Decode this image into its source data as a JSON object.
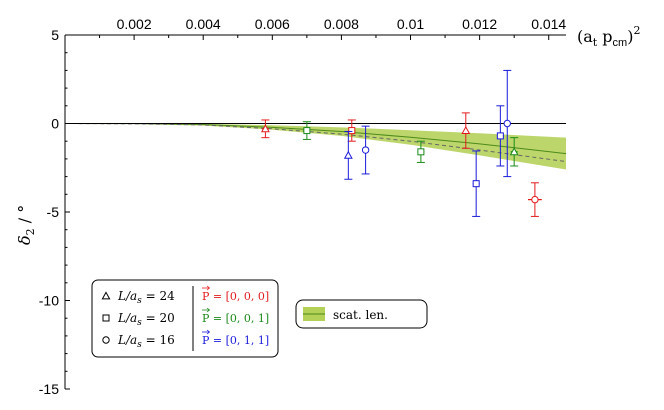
{
  "chart_data": {
    "type": "scatter",
    "x_axis": {
      "label_main": "(a",
      "label_sub": "t",
      "label_mid": " p",
      "label_sub2": "cm",
      "label_end": ")",
      "label_sup": "2",
      "range": [
        0,
        0.0145
      ],
      "ticks": [
        0.002,
        0.004,
        0.006,
        0.008,
        0.01,
        0.012,
        0.014
      ],
      "tick_labels": [
        "0.002",
        "0.004",
        "0.006",
        "0.008",
        "0.01",
        "0.012",
        "0.014"
      ],
      "position": "top"
    },
    "y_axis": {
      "label_main": "δ",
      "label_sub": "2",
      "label_end": " / °",
      "range": [
        -15,
        5
      ],
      "ticks": [
        5,
        0,
        -5,
        -10,
        -15
      ],
      "tick_labels": [
        "5",
        "0",
        "-5",
        "-10",
        "-15"
      ]
    },
    "colors": {
      "frame_000": "#e31a1c",
      "frame_001": "#1a8a1a",
      "frame_011": "#1a1adb",
      "band_fill": "#a6c83a",
      "band_line": "#4d8a1a"
    },
    "series": [
      {
        "name": "P = [0,0,0]",
        "color_key": "frame_000",
        "points": [
          {
            "x": 0.0058,
            "y": -0.3,
            "err": 0.5,
            "xerr": 0.0001,
            "volume": "L/a_s = 24"
          },
          {
            "x": 0.0083,
            "y": -0.4,
            "err": 0.6,
            "xerr": 0.0001,
            "volume": "L/a_s = 20"
          },
          {
            "x": 0.0116,
            "y": -0.4,
            "err": 1.0,
            "xerr": 5e-05,
            "volume": "L/a_s = 24"
          },
          {
            "x": 0.0136,
            "y": -4.3,
            "err": 0.95,
            "xerr": 0.0002,
            "volume": "L/a_s = 16"
          }
        ]
      },
      {
        "name": "P = [0,0,1]",
        "color_key": "frame_001",
        "points": [
          {
            "x": 0.007,
            "y": -0.4,
            "err": 0.5,
            "xerr": 0.0001,
            "volume": "L/a_s = 20"
          },
          {
            "x": 0.0103,
            "y": -1.6,
            "err": 0.6,
            "xerr": 0.0001,
            "volume": "L/a_s = 20"
          },
          {
            "x": 0.013,
            "y": -1.6,
            "err": 0.8,
            "xerr": 0.0001,
            "volume": "L/a_s = 24"
          }
        ]
      },
      {
        "name": "P = [0,1,1]",
        "color_key": "frame_011",
        "points": [
          {
            "x": 0.0082,
            "y": -1.8,
            "err": 1.35,
            "xerr": 5e-05,
            "volume": "L/a_s = 24"
          },
          {
            "x": 0.0087,
            "y": -1.5,
            "err": 1.35,
            "xerr": 5e-05,
            "volume": "L/a_s = 16"
          },
          {
            "x": 0.0119,
            "y": -3.4,
            "err": 1.85,
            "xerr": 0.0001,
            "volume": "L/a_s = 20"
          },
          {
            "x": 0.0126,
            "y": -0.7,
            "err": 1.7,
            "xerr": 0.0001,
            "volume": "L/a_s = 20"
          },
          {
            "x": 0.0128,
            "y": 0.0,
            "err": 3.0,
            "xerr": 0.0001,
            "volume": "L/a_s = 16"
          }
        ]
      }
    ],
    "fit_band": {
      "name": "scat. len.",
      "x": [
        0.0,
        0.002,
        0.004,
        0.006,
        0.008,
        0.01,
        0.012,
        0.0145
      ],
      "center": [
        0.0,
        -0.01,
        -0.06,
        -0.22,
        -0.45,
        -0.78,
        -1.15,
        -1.7
      ],
      "upper": [
        0.0,
        0.0,
        -0.02,
        -0.1,
        -0.22,
        -0.38,
        -0.55,
        -0.8
      ],
      "lower": [
        0.0,
        -0.03,
        -0.12,
        -0.35,
        -0.7,
        -1.2,
        -1.8,
        -2.6
      ],
      "dashed": [
        0.0,
        -0.02,
        -0.08,
        -0.3,
        -0.6,
        -1.0,
        -1.5,
        -2.15
      ]
    },
    "legend": {
      "placement": "bottom-left",
      "volumes": [
        {
          "symbol": "triangle",
          "label_pre": "L/a",
          "label_sub": "s",
          "label_post": " = 24"
        },
        {
          "symbol": "square",
          "label_pre": "L/a",
          "label_sub": "s",
          "label_post": " = 20"
        },
        {
          "symbol": "circle",
          "label_pre": "L/a",
          "label_sub": "s",
          "label_post": " = 16"
        }
      ],
      "frames": [
        {
          "label": "P = [0, 0, 0]",
          "color_key": "frame_000"
        },
        {
          "label": "P = [0, 0, 1]",
          "color_key": "frame_001"
        },
        {
          "label": "P = [0, 1, 1]",
          "color_key": "frame_011"
        }
      ],
      "band_label": "scat. len."
    }
  }
}
